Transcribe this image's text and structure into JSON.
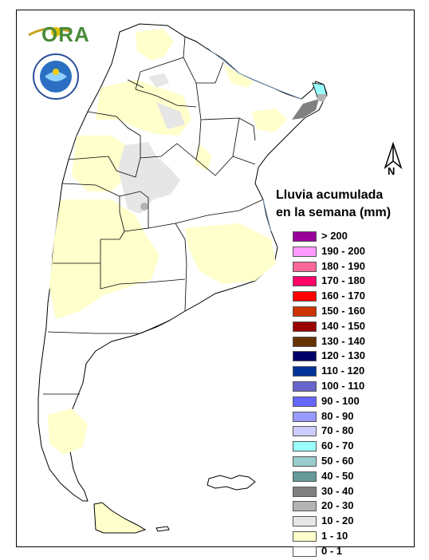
{
  "header": {
    "ora_text": "ORA"
  },
  "map": {
    "title_line1": "Lluvia acumulada",
    "title_line2": "en la semana (mm)",
    "north_label": "N"
  },
  "legend": {
    "items": [
      {
        "label": "> 200",
        "color": "#990099"
      },
      {
        "label": "190 - 200",
        "color": "#ff99ff"
      },
      {
        "label": "180 - 190",
        "color": "#ff6699"
      },
      {
        "label": "170 - 180",
        "color": "#ff0066"
      },
      {
        "label": "160 - 170",
        "color": "#ff0000"
      },
      {
        "label": "150 - 160",
        "color": "#cc3300"
      },
      {
        "label": "140 - 150",
        "color": "#990000"
      },
      {
        "label": "130 - 140",
        "color": "#663300"
      },
      {
        "label": "120 - 130",
        "color": "#000066"
      },
      {
        "label": "110 - 120",
        "color": "#003399"
      },
      {
        "label": "100 - 110",
        "color": "#6666cc"
      },
      {
        "label": "90 - 100",
        "color": "#6666ff"
      },
      {
        "label": "80 - 90",
        "color": "#9999ff"
      },
      {
        "label": "70 - 80",
        "color": "#ccccff"
      },
      {
        "label": "60 - 70",
        "color": "#99ffff"
      },
      {
        "label": "50 - 60",
        "color": "#99cccc"
      },
      {
        "label": "40 - 50",
        "color": "#669999"
      },
      {
        "label": "30 - 40",
        "color": "#808080"
      },
      {
        "label": "20 - 30",
        "color": "#b3b3b3"
      },
      {
        "label": "10 - 20",
        "color": "#e6e6e6"
      },
      {
        "label": "1 - 10",
        "color": "#ffffcc"
      },
      {
        "label": "0 - 1",
        "color": "#ffffff"
      }
    ]
  },
  "colors": {
    "land": "#ffffff",
    "light_rain": "#ffffcc",
    "gray_10_20": "#e6e6e6",
    "gray_20_30": "#b3b3b3",
    "gray_30_40": "#808080",
    "cyan_60_70": "#99ffff",
    "border": "#000000"
  }
}
